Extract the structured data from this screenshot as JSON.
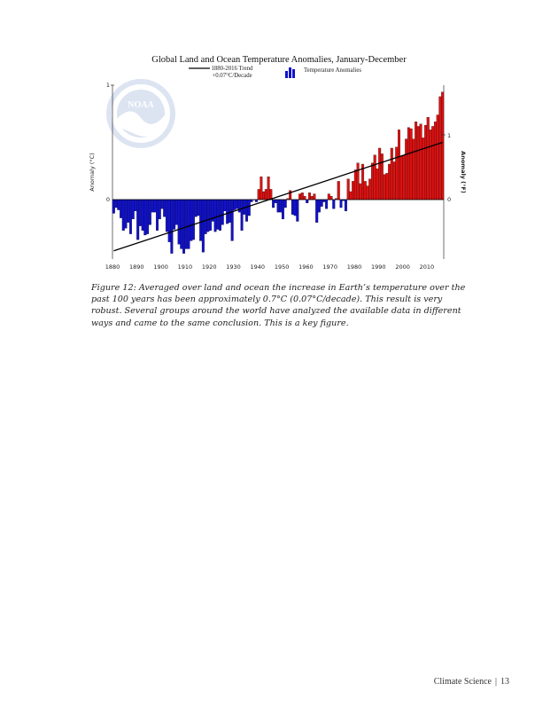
{
  "chart_data": {
    "type": "bar",
    "title": "Global Land and Ocean Temperature Anomalies, January-December",
    "legend": {
      "trend_line1": "1880-2016 Trend",
      "trend_line2": "+0.07°C/Decade",
      "bars_label": "Temperature Anomalies",
      "placement": "top"
    },
    "ylabel_left": "Anomaly (°C)",
    "ylabel_right": "Anomaly (°F)",
    "ylim": [
      -0.6,
      1.0
    ],
    "y_ticks_left": [
      "1",
      "0"
    ],
    "y_ticks_right": [
      "1",
      "0"
    ],
    "x_ticks": [
      "1880",
      "1890",
      "1900",
      "1910",
      "1920",
      "1930",
      "1940",
      "1950",
      "1960",
      "1970",
      "1980",
      "1990",
      "2000",
      "2010"
    ],
    "grid": false,
    "colors": {
      "positive": "#dd1111",
      "negative": "#1111cc",
      "trend": "#000000"
    },
    "years_start": 1880,
    "values": [
      -0.12,
      -0.07,
      -0.09,
      -0.16,
      -0.27,
      -0.25,
      -0.2,
      -0.3,
      -0.17,
      -0.1,
      -0.35,
      -0.23,
      -0.27,
      -0.31,
      -0.3,
      -0.22,
      -0.11,
      -0.11,
      -0.27,
      -0.17,
      -0.08,
      -0.15,
      -0.28,
      -0.37,
      -0.47,
      -0.26,
      -0.22,
      -0.39,
      -0.43,
      -0.47,
      -0.43,
      -0.43,
      -0.36,
      -0.35,
      -0.15,
      -0.14,
      -0.36,
      -0.46,
      -0.3,
      -0.28,
      -0.27,
      -0.19,
      -0.28,
      -0.26,
      -0.27,
      -0.22,
      -0.1,
      -0.21,
      -0.2,
      -0.36,
      -0.09,
      -0.08,
      -0.11,
      -0.27,
      -0.13,
      -0.19,
      -0.14,
      -0.02,
      -0.0,
      -0.02,
      0.09,
      0.2,
      0.07,
      0.09,
      0.2,
      0.09,
      -0.07,
      -0.03,
      -0.11,
      -0.11,
      -0.17,
      -0.07,
      0.01,
      0.08,
      -0.13,
      -0.14,
      -0.19,
      0.05,
      0.06,
      0.03,
      -0.03,
      0.06,
      0.03,
      0.05,
      -0.2,
      -0.11,
      -0.06,
      -0.02,
      -0.08,
      0.05,
      0.03,
      -0.08,
      0.01,
      0.16,
      -0.07,
      -0.01,
      -0.1,
      0.18,
      0.07,
      0.16,
      0.26,
      0.32,
      0.14,
      0.31,
      0.16,
      0.12,
      0.18,
      0.32,
      0.39,
      0.27,
      0.45,
      0.4,
      0.22,
      0.23,
      0.31,
      0.45,
      0.33,
      0.46,
      0.61,
      0.38,
      0.39,
      0.53,
      0.63,
      0.62,
      0.53,
      0.68,
      0.64,
      0.66,
      0.54,
      0.65,
      0.72,
      0.61,
      0.64,
      0.68,
      0.74,
      0.9,
      0.94
    ]
  },
  "caption": "Figure 12: Averaged over land and ocean the increase in Earth’s temperature over the past 100 years has been approximately 0.7°C (0.07°C/decade). This result is very robust. Several groups around the world have analyzed the available data in different ways and came to the same conclusion. This is a key figure.",
  "footer": {
    "text": "Climate Science",
    "page": "13"
  },
  "logo_text": "NOAA"
}
